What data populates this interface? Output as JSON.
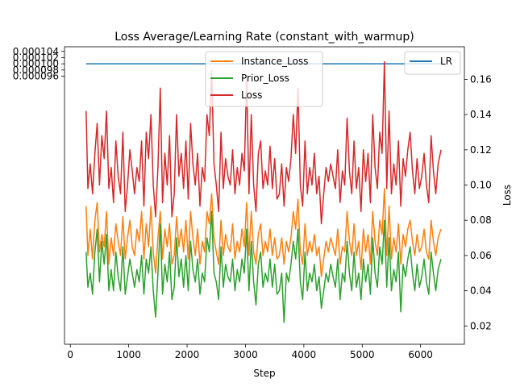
{
  "chart_data": {
    "type": "line",
    "title": "Loss Average/Learning Rate (constant_with_warmup)",
    "xlabel": "Step",
    "ylabel_left": "",
    "ylabel_right": "Loss",
    "xlim": [
      -100,
      6750
    ],
    "ylim_left": [
      9.4813e-06,
      0.0001055
    ],
    "ylim_right": [
      0.0096,
      0.1785
    ],
    "x_ticks": [
      0,
      1000,
      2000,
      3000,
      4000,
      5000,
      6000
    ],
    "x_tick_labels": [
      "0",
      "1000",
      "2000",
      "3000",
      "4000",
      "5000",
      "6000"
    ],
    "y_left_ticks": [
      9.6e-05,
      9.8e-05,
      0.0001,
      0.000102,
      0.000104
    ],
    "y_left_tick_labels": [
      "0.000096",
      "0.000098",
      "0.000100",
      "0.000102",
      "0.000104"
    ],
    "y_right_ticks": [
      0.02,
      0.04,
      0.06,
      0.08,
      0.1,
      0.12,
      0.14,
      0.16
    ],
    "y_right_tick_labels": [
      "0.02",
      "0.04",
      "0.06",
      "0.08",
      "0.10",
      "0.12",
      "0.14",
      "0.16"
    ],
    "legend_left": {
      "placement": "top-center",
      "entries": [
        "Instance_Loss",
        "Prior_Loss",
        "Loss"
      ]
    },
    "legend_right": {
      "placement": "top-right",
      "entries": [
        "LR"
      ]
    },
    "series": [
      {
        "name": "LR",
        "axis": "left",
        "color": "#1f77b4",
        "x": [
          270,
          6350
        ],
        "y": [
          0.0001,
          0.0001
        ]
      },
      {
        "name": "Loss",
        "axis": "right",
        "color": "#d62728",
        "x": [
          270,
          300,
          340,
          380,
          420,
          460,
          500,
          540,
          580,
          620,
          660,
          700,
          740,
          780,
          820,
          860,
          900,
          940,
          980,
          1020,
          1060,
          1100,
          1140,
          1180,
          1220,
          1260,
          1300,
          1340,
          1380,
          1420,
          1460,
          1500,
          1540,
          1580,
          1620,
          1660,
          1700,
          1740,
          1780,
          1820,
          1860,
          1900,
          1940,
          1980,
          2020,
          2060,
          2100,
          2140,
          2180,
          2220,
          2260,
          2300,
          2340,
          2380,
          2420,
          2460,
          2500,
          2540,
          2580,
          2620,
          2660,
          2700,
          2740,
          2780,
          2820,
          2860,
          2900,
          2940,
          2980,
          3020,
          3060,
          3100,
          3140,
          3180,
          3220,
          3260,
          3300,
          3340,
          3380,
          3420,
          3460,
          3500,
          3540,
          3580,
          3620,
          3660,
          3700,
          3740,
          3780,
          3820,
          3860,
          3900,
          3940,
          3980,
          4020,
          4060,
          4100,
          4140,
          4180,
          4220,
          4260,
          4300,
          4340,
          4380,
          4420,
          4460,
          4500,
          4540,
          4580,
          4620,
          4660,
          4700,
          4740,
          4780,
          4820,
          4860,
          4900,
          4940,
          4980,
          5020,
          5060,
          5100,
          5140,
          5180,
          5220,
          5260,
          5300,
          5340,
          5380,
          5420,
          5460,
          5500,
          5540,
          5580,
          5620,
          5660,
          5700,
          5740,
          5780,
          5820,
          5860,
          5900,
          5940,
          5980,
          6020,
          6060,
          6100,
          6140,
          6180,
          6220,
          6260,
          6300,
          6350
        ],
        "y": [
          0.142,
          0.098,
          0.112,
          0.095,
          0.118,
          0.135,
          0.1,
          0.128,
          0.115,
          0.142,
          0.098,
          0.11,
          0.09,
          0.125,
          0.105,
          0.095,
          0.13,
          0.085,
          0.1,
          0.12,
          0.108,
          0.095,
          0.11,
          0.102,
          0.125,
          0.088,
          0.13,
          0.115,
          0.14,
          0.1,
          0.082,
          0.11,
          0.155,
          0.09,
          0.118,
          0.1,
          0.128,
          0.082,
          0.095,
          0.14,
          0.105,
          0.118,
          0.098,
          0.125,
          0.092,
          0.135,
          0.112,
          0.1,
          0.118,
          0.088,
          0.11,
          0.102,
          0.14,
          0.128,
          0.165,
          0.112,
          0.1,
          0.085,
          0.13,
          0.098,
          0.115,
          0.105,
          0.1,
          0.12,
          0.095,
          0.11,
          0.1,
          0.118,
          0.108,
          0.16,
          0.095,
          0.14,
          0.1,
          0.085,
          0.118,
          0.125,
          0.098,
          0.108,
          0.1,
          0.122,
          0.098,
          0.115,
          0.092,
          0.095,
          0.112,
          0.088,
          0.11,
          0.102,
          0.115,
          0.14,
          0.118,
          0.155,
          0.1,
          0.088,
          0.125,
          0.095,
          0.11,
          0.1,
          0.118,
          0.095,
          0.105,
          0.078,
          0.095,
          0.11,
          0.102,
          0.112,
          0.105,
          0.098,
          0.12,
          0.09,
          0.108,
          0.1,
          0.138,
          0.108,
          0.095,
          0.125,
          0.098,
          0.11,
          0.085,
          0.12,
          0.102,
          0.118,
          0.09,
          0.14,
          0.11,
          0.098,
          0.13,
          0.118,
          0.17,
          0.098,
          0.142,
          0.095,
          0.112,
          0.1,
          0.125,
          0.088,
          0.115,
          0.105,
          0.12,
          0.13,
          0.108,
          0.095,
          0.115,
          0.098,
          0.105,
          0.118,
          0.1,
          0.09,
          0.128,
          0.108,
          0.095,
          0.112,
          0.12
        ]
      },
      {
        "name": "Instance_Loss",
        "axis": "right",
        "color": "#ff7f0e",
        "x": [
          270,
          300,
          340,
          380,
          420,
          460,
          500,
          540,
          580,
          620,
          660,
          700,
          740,
          780,
          820,
          860,
          900,
          940,
          980,
          1020,
          1060,
          1100,
          1140,
          1180,
          1220,
          1260,
          1300,
          1340,
          1380,
          1420,
          1460,
          1500,
          1540,
          1580,
          1620,
          1660,
          1700,
          1740,
          1780,
          1820,
          1860,
          1900,
          1940,
          1980,
          2020,
          2060,
          2100,
          2140,
          2180,
          2220,
          2260,
          2300,
          2340,
          2380,
          2420,
          2460,
          2500,
          2540,
          2580,
          2620,
          2660,
          2700,
          2740,
          2780,
          2820,
          2860,
          2900,
          2940,
          2980,
          3020,
          3060,
          3100,
          3140,
          3180,
          3220,
          3260,
          3300,
          3340,
          3380,
          3420,
          3460,
          3500,
          3540,
          3580,
          3620,
          3660,
          3700,
          3740,
          3780,
          3820,
          3860,
          3900,
          3940,
          3980,
          4020,
          4060,
          4100,
          4140,
          4180,
          4220,
          4260,
          4300,
          4340,
          4380,
          4420,
          4460,
          4500,
          4540,
          4580,
          4620,
          4660,
          4700,
          4740,
          4780,
          4820,
          4860,
          4900,
          4940,
          4980,
          5020,
          5060,
          5100,
          5140,
          5180,
          5220,
          5260,
          5300,
          5340,
          5380,
          5420,
          5460,
          5500,
          5540,
          5580,
          5620,
          5660,
          5700,
          5740,
          5780,
          5820,
          5860,
          5900,
          5940,
          5980,
          6020,
          6060,
          6100,
          6140,
          6180,
          6220,
          6260,
          6300,
          6350
        ],
        "y": [
          0.088,
          0.06,
          0.075,
          0.058,
          0.08,
          0.09,
          0.062,
          0.072,
          0.065,
          0.085,
          0.055,
          0.07,
          0.06,
          0.078,
          0.068,
          0.06,
          0.082,
          0.058,
          0.07,
          0.08,
          0.065,
          0.06,
          0.075,
          0.068,
          0.085,
          0.058,
          0.078,
          0.065,
          0.088,
          0.062,
          0.05,
          0.07,
          0.085,
          0.058,
          0.075,
          0.065,
          0.078,
          0.055,
          0.06,
          0.082,
          0.065,
          0.075,
          0.062,
          0.08,
          0.058,
          0.085,
          0.07,
          0.06,
          0.075,
          0.055,
          0.068,
          0.062,
          0.085,
          0.078,
          0.095,
          0.07,
          0.062,
          0.055,
          0.08,
          0.06,
          0.072,
          0.065,
          0.062,
          0.078,
          0.058,
          0.068,
          0.062,
          0.075,
          0.065,
          0.09,
          0.06,
          0.085,
          0.062,
          0.055,
          0.072,
          0.078,
          0.06,
          0.068,
          0.062,
          0.075,
          0.06,
          0.07,
          0.058,
          0.06,
          0.07,
          0.055,
          0.068,
          0.062,
          0.07,
          0.085,
          0.075,
          0.092,
          0.062,
          0.055,
          0.078,
          0.06,
          0.068,
          0.062,
          0.072,
          0.06,
          0.065,
          0.048,
          0.058,
          0.068,
          0.062,
          0.07,
          0.065,
          0.06,
          0.075,
          0.055,
          0.065,
          0.062,
          0.085,
          0.068,
          0.06,
          0.078,
          0.06,
          0.068,
          0.052,
          0.075,
          0.062,
          0.072,
          0.055,
          0.085,
          0.068,
          0.06,
          0.08,
          0.072,
          0.098,
          0.06,
          0.088,
          0.058,
          0.07,
          0.062,
          0.078,
          0.055,
          0.072,
          0.065,
          0.075,
          0.08,
          0.068,
          0.06,
          0.072,
          0.062,
          0.065,
          0.075,
          0.062,
          0.058,
          0.08,
          0.068,
          0.06,
          0.07,
          0.075
        ]
      },
      {
        "name": "Prior_Loss",
        "axis": "right",
        "color": "#2ca02c",
        "x": [
          270,
          300,
          340,
          380,
          420,
          460,
          500,
          540,
          580,
          620,
          660,
          700,
          740,
          780,
          820,
          860,
          900,
          940,
          980,
          1020,
          1060,
          1100,
          1140,
          1180,
          1220,
          1260,
          1300,
          1340,
          1380,
          1420,
          1460,
          1500,
          1540,
          1580,
          1620,
          1660,
          1700,
          1740,
          1780,
          1820,
          1860,
          1900,
          1940,
          1980,
          2020,
          2060,
          2100,
          2140,
          2180,
          2220,
          2260,
          2300,
          2340,
          2380,
          2420,
          2460,
          2500,
          2540,
          2580,
          2620,
          2660,
          2700,
          2740,
          2780,
          2820,
          2860,
          2900,
          2940,
          2980,
          3020,
          3060,
          3100,
          3140,
          3180,
          3220,
          3260,
          3300,
          3340,
          3380,
          3420,
          3460,
          3500,
          3540,
          3580,
          3620,
          3660,
          3700,
          3740,
          3780,
          3820,
          3860,
          3900,
          3940,
          3980,
          4020,
          4060,
          4100,
          4140,
          4180,
          4220,
          4260,
          4300,
          4340,
          4380,
          4420,
          4460,
          4500,
          4540,
          4580,
          4620,
          4660,
          4700,
          4740,
          4780,
          4820,
          4860,
          4900,
          4940,
          4980,
          5020,
          5060,
          5100,
          5140,
          5180,
          5220,
          5260,
          5300,
          5340,
          5380,
          5420,
          5460,
          5500,
          5540,
          5580,
          5620,
          5660,
          5700,
          5740,
          5780,
          5820,
          5860,
          5900,
          5940,
          5980,
          6020,
          6060,
          6100,
          6140,
          6180,
          6220,
          6260,
          6300,
          6350
        ],
        "y": [
          0.062,
          0.042,
          0.05,
          0.038,
          0.062,
          0.075,
          0.045,
          0.068,
          0.055,
          0.072,
          0.04,
          0.052,
          0.04,
          0.062,
          0.048,
          0.04,
          0.065,
          0.038,
          0.048,
          0.058,
          0.05,
          0.042,
          0.052,
          0.045,
          0.06,
          0.038,
          0.058,
          0.05,
          0.065,
          0.04,
          0.025,
          0.05,
          0.078,
          0.038,
          0.055,
          0.045,
          0.062,
          0.035,
          0.042,
          0.07,
          0.048,
          0.058,
          0.042,
          0.06,
          0.04,
          0.068,
          0.052,
          0.045,
          0.058,
          0.038,
          0.05,
          0.045,
          0.07,
          0.062,
          0.085,
          0.05,
          0.045,
          0.035,
          0.065,
          0.042,
          0.055,
          0.048,
          0.045,
          0.058,
          0.04,
          0.052,
          0.045,
          0.058,
          0.05,
          0.075,
          0.04,
          0.068,
          0.045,
          0.032,
          0.055,
          0.062,
          0.042,
          0.05,
          0.045,
          0.058,
          0.042,
          0.055,
          0.038,
          0.04,
          0.05,
          0.022,
          0.05,
          0.045,
          0.055,
          0.068,
          0.058,
          0.075,
          0.045,
          0.035,
          0.062,
          0.04,
          0.05,
          0.045,
          0.055,
          0.04,
          0.048,
          0.03,
          0.04,
          0.05,
          0.045,
          0.055,
          0.048,
          0.042,
          0.058,
          0.035,
          0.05,
          0.045,
          0.068,
          0.05,
          0.04,
          0.062,
          0.042,
          0.05,
          0.035,
          0.058,
          0.045,
          0.055,
          0.038,
          0.07,
          0.05,
          0.042,
          0.065,
          0.055,
          0.08,
          0.042,
          0.07,
          0.04,
          0.052,
          0.045,
          0.062,
          0.028,
          0.055,
          0.048,
          0.058,
          0.065,
          0.05,
          0.04,
          0.055,
          0.042,
          0.048,
          0.058,
          0.045,
          0.038,
          0.062,
          0.05,
          0.04,
          0.052,
          0.058
        ]
      }
    ]
  }
}
